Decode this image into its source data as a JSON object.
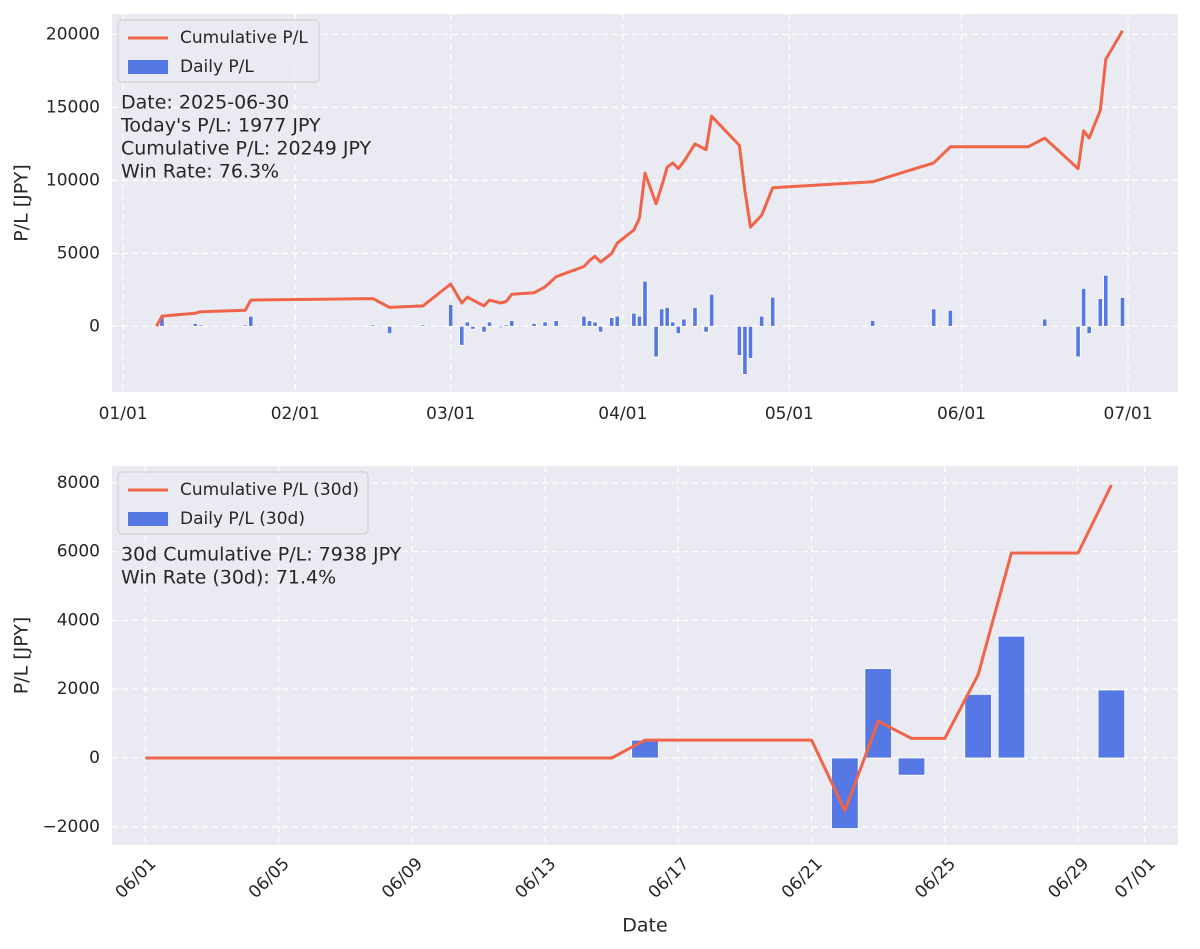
{
  "chart_data": [
    {
      "type": "combo",
      "ylabel": "P/L [JPY]",
      "x": [
        "01/07",
        "01/08",
        "01/14",
        "01/15",
        "01/23",
        "01/24",
        "02/15",
        "02/18",
        "02/24",
        "03/01",
        "03/03",
        "03/04",
        "03/05",
        "03/07",
        "03/08",
        "03/10",
        "03/11",
        "03/12",
        "03/16",
        "03/18",
        "03/20",
        "03/25",
        "03/26",
        "03/27",
        "03/28",
        "03/30",
        "03/31",
        "04/03",
        "04/04",
        "04/05",
        "04/07",
        "04/08",
        "04/09",
        "04/10",
        "04/11",
        "04/12",
        "04/14",
        "04/16",
        "04/17",
        "04/22",
        "04/23",
        "04/24",
        "04/26",
        "04/28",
        "05/16",
        "05/27",
        "05/30",
        "06/13",
        "06/16",
        "06/22",
        "06/23",
        "06/24",
        "06/26",
        "06/27",
        "06/30"
      ],
      "series": [
        {
          "name": "Cumulative P/L",
          "type": "line",
          "color": "#f0644a",
          "values": [
            0,
            700,
            900,
            1000,
            1100,
            1800,
            1900,
            1300,
            1400,
            2900,
            1600,
            2000,
            1800,
            1400,
            1800,
            1600,
            1700,
            2200,
            2300,
            2700,
            3400,
            4100,
            4500,
            4800,
            4400,
            5000,
            5700,
            6600,
            7400,
            10500,
            8400,
            9600,
            10900,
            11200,
            10800,
            11300,
            12500,
            12100,
            14400,
            12400,
            9300,
            6800,
            7600,
            9500,
            9900,
            11200,
            12300,
            12300,
            12900,
            10800,
            13400,
            12900,
            14800,
            18300,
            20249
          ]
        },
        {
          "name": "Daily P/L",
          "type": "bar",
          "color": "#5578e4",
          "values": [
            0,
            700,
            200,
            100,
            100,
            700,
            100,
            -500,
            100,
            1500,
            -1300,
            300,
            -200,
            -400,
            300,
            -100,
            100,
            400,
            200,
            300,
            400,
            700,
            400,
            300,
            -400,
            600,
            700,
            900,
            700,
            3100,
            -2100,
            1200,
            1300,
            300,
            -500,
            500,
            1300,
            -400,
            2200,
            -2000,
            -3300,
            -2200,
            700,
            2000,
            400,
            1200,
            1100,
            0,
            500,
            -2100,
            2600,
            -500,
            1900,
            3500,
            1977
          ]
        }
      ],
      "xlim": [
        "12/30",
        "07/10"
      ],
      "xticks": [
        "01/01",
        "02/01",
        "03/01",
        "04/01",
        "05/01",
        "06/01",
        "07/01"
      ],
      "ylim": [
        -4500,
        21400
      ],
      "yticks": [
        0,
        5000,
        10000,
        15000,
        20000
      ],
      "grid": true,
      "legend": "upper left",
      "annotations": [
        "Date: 2025-06-30",
        "Today's P/L: 1977 JPY",
        "Cumulative P/L: 20249 JPY",
        "Win Rate: 76.3%"
      ]
    },
    {
      "type": "combo",
      "ylabel": "P/L [JPY]",
      "xlabel": "Date",
      "x": [
        "06/01",
        "06/02",
        "06/03",
        "06/04",
        "06/05",
        "06/06",
        "06/07",
        "06/08",
        "06/09",
        "06/10",
        "06/11",
        "06/12",
        "06/13",
        "06/14",
        "06/15",
        "06/16",
        "06/17",
        "06/18",
        "06/19",
        "06/20",
        "06/21",
        "06/22",
        "06/23",
        "06/24",
        "06/25",
        "06/26",
        "06/27",
        "06/28",
        "06/29",
        "06/30"
      ],
      "series": [
        {
          "name": "Cumulative P/L (30d)",
          "type": "line",
          "color": "#f0644a",
          "values": [
            0,
            0,
            0,
            0,
            0,
            0,
            0,
            0,
            0,
            0,
            0,
            0,
            0,
            0,
            0,
            519,
            519,
            519,
            519,
            519,
            519,
            -1531,
            1069,
            569,
            569,
            2419,
            5961,
            5961,
            5961,
            7938
          ]
        },
        {
          "name": "Daily P/L (30d)",
          "type": "bar",
          "color": "#5578e4",
          "values": [
            0,
            0,
            0,
            0,
            0,
            0,
            0,
            0,
            0,
            0,
            0,
            0,
            0,
            0,
            0,
            519,
            0,
            0,
            0,
            0,
            0,
            -2050,
            2600,
            -500,
            0,
            1850,
            3542,
            0,
            0,
            1977
          ]
        }
      ],
      "xlim": [
        "05/31",
        "07/02"
      ],
      "xticks": [
        "06/01",
        "06/05",
        "06/09",
        "06/13",
        "06/17",
        "06/21",
        "06/25",
        "06/29",
        "07/01"
      ],
      "xtick_rotation": 45,
      "ylim": [
        -2530,
        8490
      ],
      "yticks": [
        {
          "value": -2000,
          "label": "−2000"
        },
        0,
        2000,
        4000,
        6000,
        8000
      ],
      "grid": true,
      "legend": "upper left",
      "annotations": [
        "30d Cumulative P/L: 7938 JPY",
        "Win Rate (30d): 71.4%"
      ]
    }
  ]
}
